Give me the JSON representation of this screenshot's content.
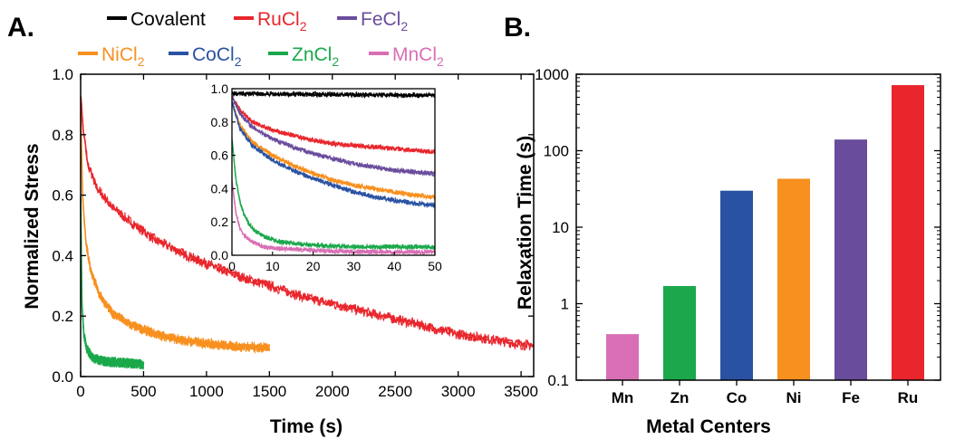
{
  "chart_data": [
    {
      "panel": "A.",
      "type": "line",
      "xlabel": "Time (s)",
      "ylabel": "Normalized Stress",
      "xlim": [
        0,
        3600
      ],
      "ylim": [
        0,
        1.0
      ],
      "xticks": [
        "0",
        "500",
        "1000",
        "1500",
        "2000",
        "2500",
        "3000",
        "3500"
      ],
      "yticks": [
        "0.0",
        "0.2",
        "0.4",
        "0.6",
        "0.8",
        "1.0"
      ],
      "legend": [
        {
          "name": "Covalent",
          "base": "Covalent",
          "sub": "",
          "color": "#000000"
        },
        {
          "name": "RuCl2",
          "base": "RuCl",
          "sub": "2",
          "color": "#e8262c"
        },
        {
          "name": "FeCl2",
          "base": "FeCl",
          "sub": "2",
          "color": "#6a4c9c"
        },
        {
          "name": "NiCl2",
          "base": "NiCl",
          "sub": "2",
          "color": "#f7901e"
        },
        {
          "name": "CoCl2",
          "base": "CoCl",
          "sub": "2",
          "color": "#2a52a3"
        },
        {
          "name": "ZnCl2",
          "base": "ZnCl",
          "sub": "2",
          "color": "#1aa84b"
        },
        {
          "name": "MnCl2",
          "base": "MnCl",
          "sub": "2",
          "color": "#d86fb4"
        }
      ],
      "series": [
        {
          "name": "RuCl2",
          "color": "#e8262c",
          "x": [
            0,
            25,
            60,
            120,
            250,
            400,
            600,
            900,
            1200,
            1500,
            1800,
            2100,
            2400,
            2700,
            3000,
            3300,
            3600
          ],
          "y": [
            0.93,
            0.8,
            0.7,
            0.63,
            0.56,
            0.51,
            0.45,
            0.39,
            0.34,
            0.3,
            0.26,
            0.23,
            0.2,
            0.17,
            0.14,
            0.12,
            0.1
          ]
        },
        {
          "name": "NiCl2",
          "color": "#f7901e",
          "x": [
            0,
            15,
            40,
            80,
            150,
            250,
            400,
            600,
            800,
            1000,
            1200,
            1500
          ],
          "y": [
            0.88,
            0.6,
            0.45,
            0.35,
            0.27,
            0.21,
            0.17,
            0.14,
            0.12,
            0.11,
            0.1,
            0.095
          ]
        },
        {
          "name": "ZnCl2",
          "color": "#1aa84b",
          "x": [
            0,
            10,
            25,
            50,
            100,
            200,
            350,
            500
          ],
          "y": [
            0.6,
            0.25,
            0.14,
            0.09,
            0.06,
            0.05,
            0.045,
            0.04
          ]
        }
      ],
      "inset": {
        "xlim": [
          0,
          50
        ],
        "ylim": [
          0,
          1.0
        ],
        "xticks": [
          "0",
          "10",
          "20",
          "30",
          "40",
          "50"
        ],
        "yticks": [
          "0.0",
          "0.2",
          "0.4",
          "0.6",
          "0.8",
          "1.0"
        ],
        "series": [
          {
            "name": "Covalent",
            "color": "#000000",
            "x": [
              0,
              50
            ],
            "y": [
              0.97,
              0.96
            ]
          },
          {
            "name": "RuCl2",
            "color": "#e8262c",
            "x": [
              0,
              2,
              5,
              10,
              15,
              20,
              25,
              30,
              35,
              40,
              45,
              50
            ],
            "y": [
              0.95,
              0.87,
              0.8,
              0.75,
              0.72,
              0.69,
              0.67,
              0.66,
              0.65,
              0.64,
              0.63,
              0.62
            ]
          },
          {
            "name": "FeCl2",
            "color": "#6a4c9c",
            "x": [
              0,
              2,
              5,
              10,
              15,
              20,
              25,
              30,
              35,
              40,
              45,
              50
            ],
            "y": [
              0.95,
              0.85,
              0.77,
              0.7,
              0.65,
              0.61,
              0.58,
              0.55,
              0.53,
              0.51,
              0.5,
              0.49
            ]
          },
          {
            "name": "NiCl2",
            "color": "#f7901e",
            "x": [
              0,
              2,
              5,
              10,
              15,
              20,
              25,
              30,
              35,
              40,
              45,
              50
            ],
            "y": [
              0.92,
              0.78,
              0.68,
              0.6,
              0.54,
              0.49,
              0.45,
              0.42,
              0.4,
              0.38,
              0.36,
              0.35
            ]
          },
          {
            "name": "CoCl2",
            "color": "#2a52a3",
            "x": [
              0,
              2,
              5,
              10,
              15,
              20,
              25,
              30,
              35,
              40,
              45,
              50
            ],
            "y": [
              0.92,
              0.76,
              0.66,
              0.57,
              0.51,
              0.46,
              0.42,
              0.38,
              0.35,
              0.33,
              0.31,
              0.3
            ]
          },
          {
            "name": "ZnCl2",
            "color": "#1aa84b",
            "x": [
              0,
              1,
              2,
              3,
              5,
              8,
              12,
              20,
              30,
              40,
              50
            ],
            "y": [
              0.7,
              0.45,
              0.32,
              0.24,
              0.16,
              0.11,
              0.08,
              0.06,
              0.05,
              0.05,
              0.05
            ]
          },
          {
            "name": "MnCl2",
            "color": "#d86fb4",
            "x": [
              0,
              1,
              2,
              3,
              5,
              8,
              12,
              20,
              30,
              40,
              50
            ],
            "y": [
              0.45,
              0.25,
              0.16,
              0.12,
              0.08,
              0.05,
              0.04,
              0.03,
              0.02,
              0.02,
              0.02
            ]
          }
        ]
      }
    },
    {
      "panel": "B.",
      "type": "bar",
      "xlabel": "Metal Centers",
      "ylabel": "Relaxation Time (s)",
      "yscale": "log",
      "ylim": [
        0.1,
        1000
      ],
      "yticks": [
        "0.1",
        "1",
        "10",
        "100",
        "1000"
      ],
      "categories": [
        "Mn",
        "Zn",
        "Co",
        "Ni",
        "Fe",
        "Ru"
      ],
      "values": [
        0.4,
        1.7,
        30,
        43,
        140,
        720
      ],
      "colors": [
        "#d86fb4",
        "#1aa84b",
        "#2a52a3",
        "#f7901e",
        "#6a4c9c",
        "#e8262c"
      ]
    }
  ]
}
